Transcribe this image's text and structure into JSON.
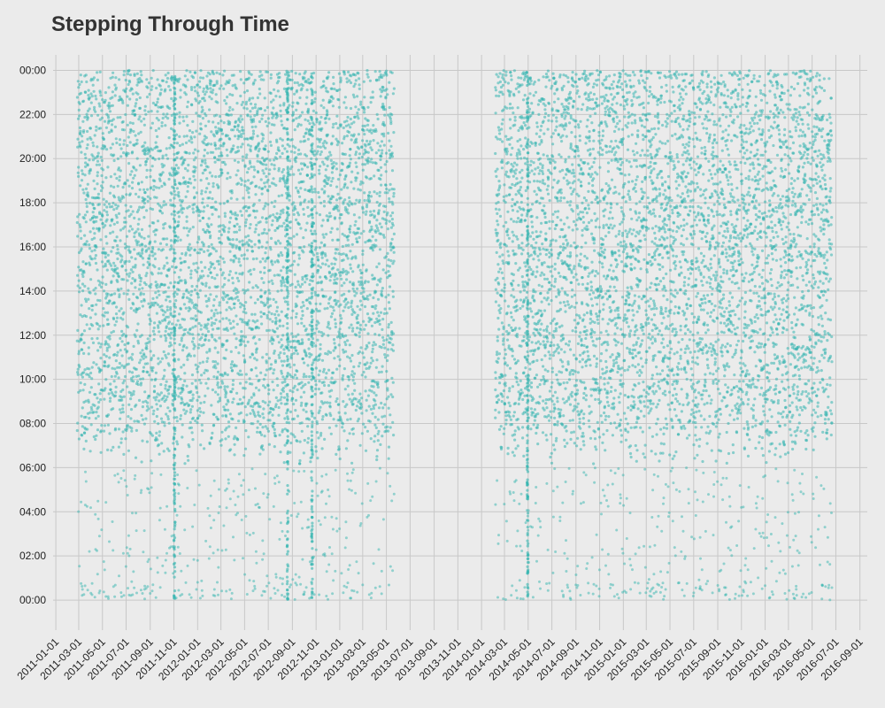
{
  "chart_data": {
    "type": "scatter",
    "title": "Stepping Through Time",
    "xlabel": "",
    "ylabel": "",
    "x_axis": "date",
    "xlim": [
      "2010-12-25",
      "2016-09-20"
    ],
    "ylim_hours": [
      -1.2,
      24.7
    ],
    "grid": true,
    "legend": "none",
    "x_ticks": [
      "2011-01-01",
      "2011-03-01",
      "2011-05-01",
      "2011-07-01",
      "2011-09-01",
      "2011-11-01",
      "2012-01-01",
      "2012-03-01",
      "2012-05-01",
      "2012-07-01",
      "2012-09-01",
      "2012-11-01",
      "2013-01-01",
      "2013-03-01",
      "2013-05-01",
      "2013-07-01",
      "2013-09-01",
      "2013-11-01",
      "2014-01-01",
      "2014-03-01",
      "2014-05-01",
      "2014-07-01",
      "2014-09-01",
      "2014-11-01",
      "2015-01-01",
      "2015-03-01",
      "2015-05-01",
      "2015-07-01",
      "2015-09-01",
      "2015-11-01",
      "2016-01-01",
      "2016-03-01",
      "2016-05-01",
      "2016-07-01",
      "2016-09-01"
    ],
    "y_ticks": [
      {
        "hour": 0,
        "label": "00:00"
      },
      {
        "hour": 2,
        "label": "02:00"
      },
      {
        "hour": 4,
        "label": "04:00"
      },
      {
        "hour": 6,
        "label": "06:00"
      },
      {
        "hour": 8,
        "label": "08:00"
      },
      {
        "hour": 10,
        "label": "10:00"
      },
      {
        "hour": 12,
        "label": "12:00"
      },
      {
        "hour": 14,
        "label": "14:00"
      },
      {
        "hour": 16,
        "label": "16:00"
      },
      {
        "hour": 18,
        "label": "18:00"
      },
      {
        "hour": 20,
        "label": "20:00"
      },
      {
        "hour": 22,
        "label": "22:00"
      },
      {
        "hour": 24,
        "label": "00:00"
      }
    ],
    "point_color": "#35b5b0",
    "series": [
      {
        "date_range": [
          "2011-02-25",
          "2013-05-20"
        ],
        "dense_hours": [
          6,
          24
        ],
        "sparse_hours": [
          0,
          6
        ]
      },
      {
        "date_range": [
          "2014-02-05",
          "2016-06-20"
        ],
        "dense_hours": [
          6,
          24
        ],
        "sparse_hours": [
          0,
          6
        ]
      }
    ],
    "dense_columns": [
      "2011-11-01",
      "2012-08-18",
      "2012-10-20",
      "2014-04-28"
    ]
  }
}
